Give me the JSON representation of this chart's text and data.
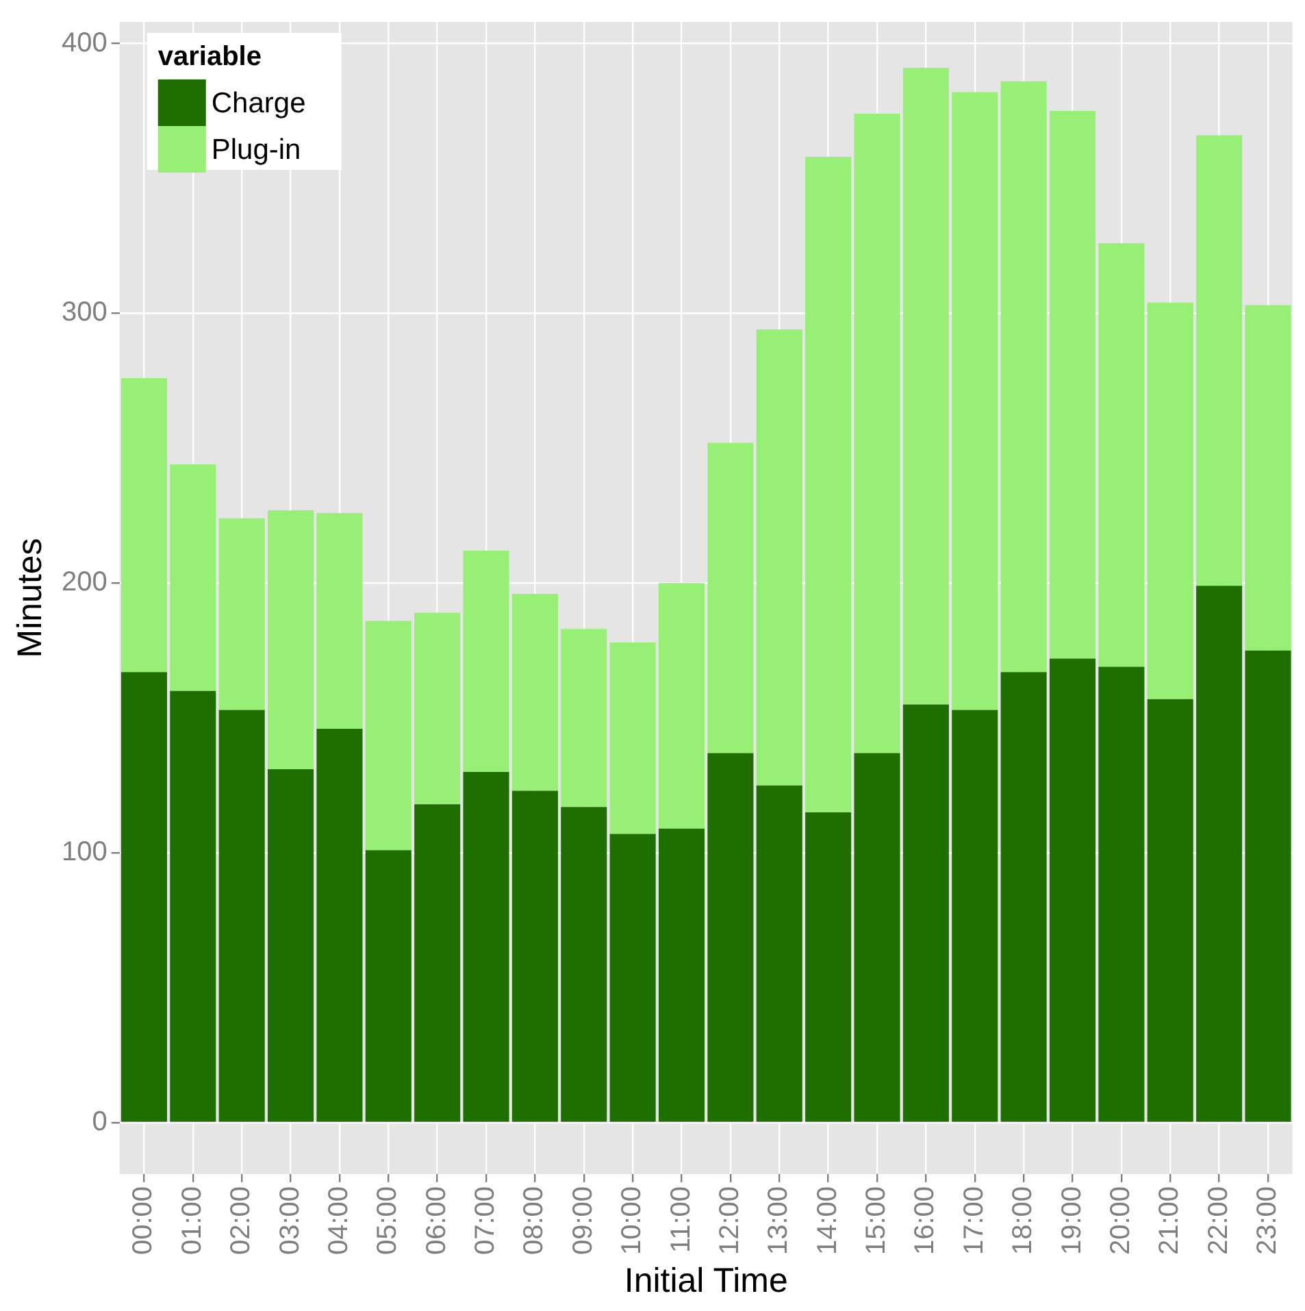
{
  "chart_data": {
    "type": "bar",
    "stacked": true,
    "xlabel": "Initial Time",
    "ylabel": "Minutes",
    "legend_title": "variable",
    "legend": "top left",
    "grid": true,
    "categories": [
      "00:00",
      "01:00",
      "02:00",
      "03:00",
      "04:00",
      "05:00",
      "06:00",
      "07:00",
      "08:00",
      "09:00",
      "10:00",
      "11:00",
      "12:00",
      "13:00",
      "14:00",
      "15:00",
      "16:00",
      "17:00",
      "18:00",
      "19:00",
      "20:00",
      "21:00",
      "22:00",
      "23:00"
    ],
    "ylim": [
      -19,
      408
    ],
    "yticks": [
      0,
      100,
      200,
      300,
      400
    ],
    "series": [
      {
        "name": "Charge",
        "color": "#1f6f00",
        "values": [
          167,
          160,
          153,
          131,
          146,
          101,
          118,
          130,
          123,
          117,
          107,
          109,
          137,
          125,
          115,
          137,
          155,
          153,
          167,
          172,
          169,
          157,
          199,
          175
        ]
      },
      {
        "name": "Plug-in",
        "color": "#97ef76",
        "values": [
          109,
          84,
          71,
          96,
          80,
          85,
          71,
          82,
          73,
          66,
          71,
          91,
          115,
          169,
          243,
          237,
          236,
          229,
          219,
          203,
          157,
          147,
          167,
          128
        ]
      }
    ]
  }
}
